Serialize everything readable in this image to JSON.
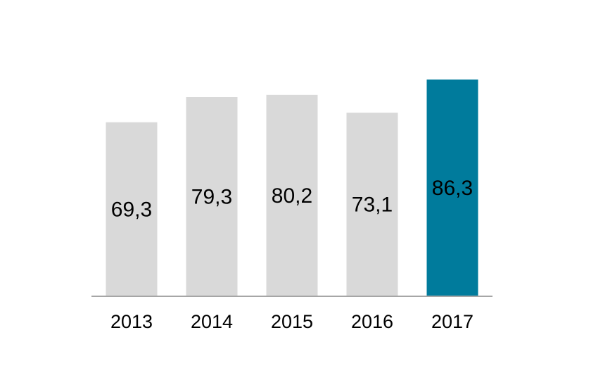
{
  "chart_data": {
    "type": "bar",
    "title": "",
    "xlabel": "",
    "ylabel": "",
    "categories": [
      "2013",
      "2014",
      "2015",
      "2016",
      "2017"
    ],
    "values": [
      69.3,
      79.3,
      80.2,
      73.1,
      86.3
    ],
    "value_labels": [
      "69,3",
      "79,3",
      "80,2",
      "73,1",
      "86,3"
    ],
    "ylim": [
      0,
      86.3
    ],
    "grid": false,
    "legend": "none",
    "colors": {
      "default_bar": "#d9d9d9",
      "highlight_bar": "#007b9c",
      "axis": "#a6a6a6"
    },
    "highlight_index": 4
  }
}
